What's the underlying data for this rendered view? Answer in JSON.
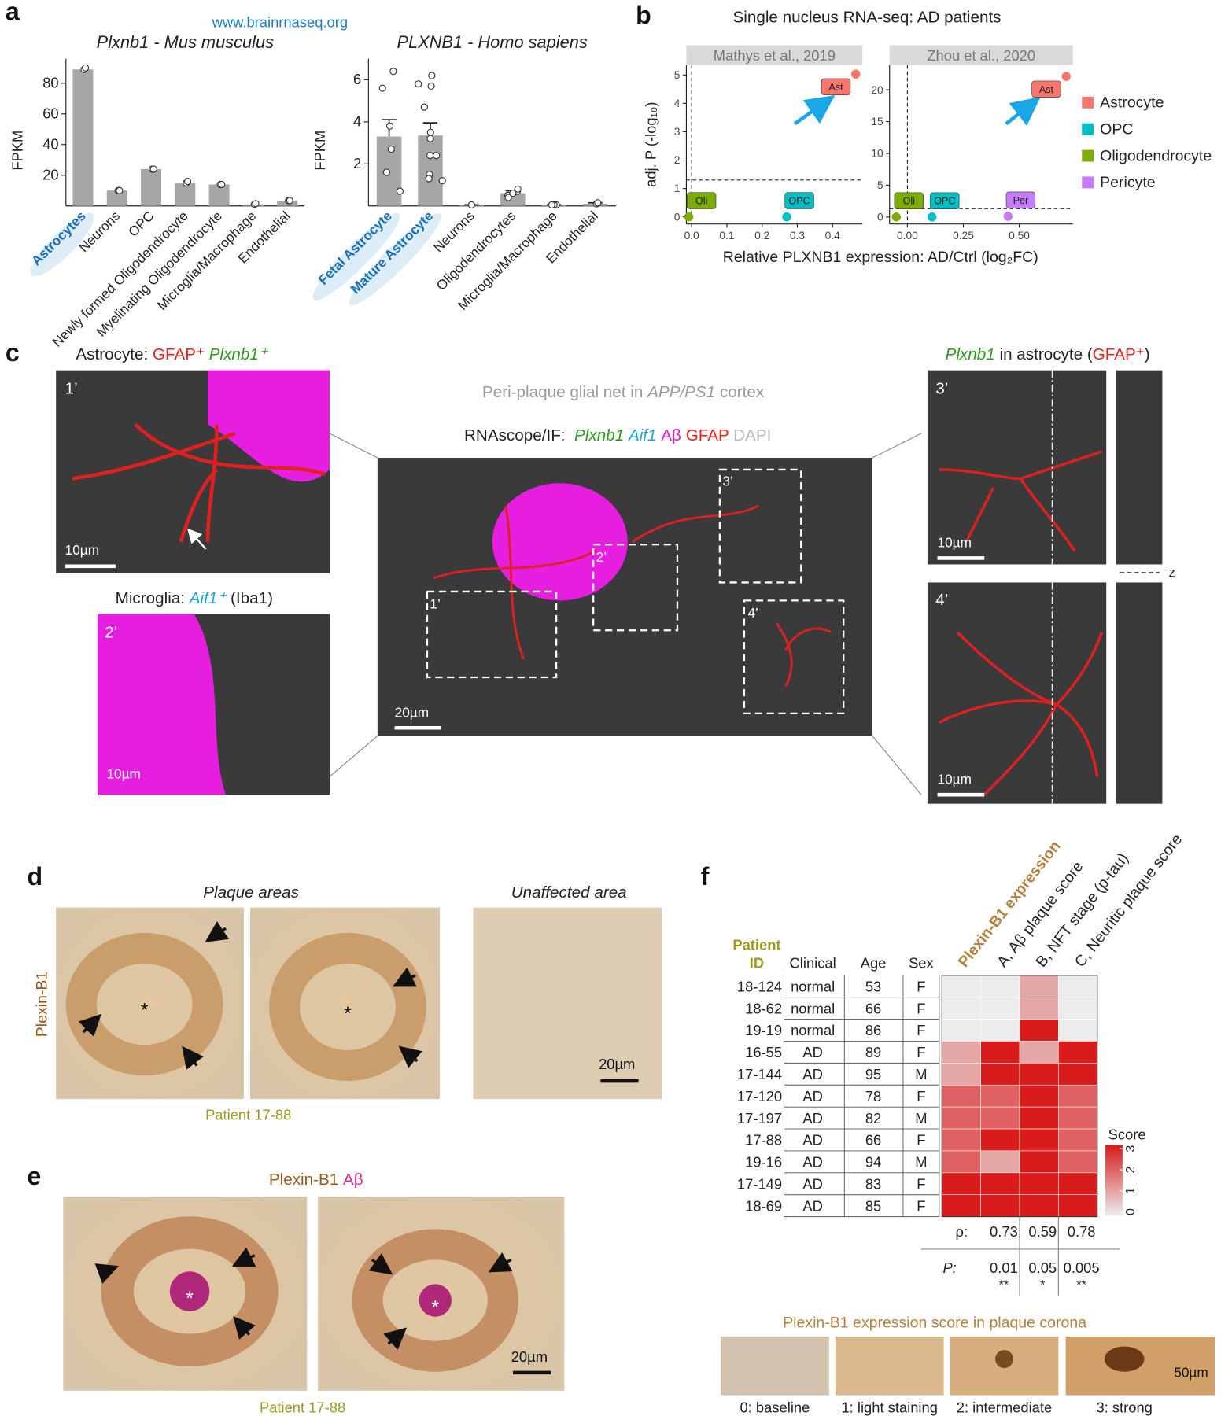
{
  "panel_labels": [
    "a",
    "b",
    "c",
    "d",
    "e",
    "f"
  ],
  "source": "www.brainrnaseq.org",
  "chart_data": [
    {
      "type": "bar",
      "title": "Plxnb1 - Mus musculus",
      "ylabel": "FPKM",
      "categories": [
        "Astrocytes",
        "Neurons",
        "OPC",
        "Newly formed Oligodendrocyte",
        "Myelinating Oligodendrocyte",
        "Microglia/Macrophage",
        "Endothelial"
      ],
      "values": [
        89,
        10,
        24,
        15,
        14,
        1,
        3.5
      ],
      "points": [
        [
          89,
          90
        ],
        [
          10,
          10
        ],
        [
          24,
          24
        ],
        [
          15,
          16
        ],
        [
          14,
          14
        ],
        [
          1,
          1.5
        ],
        [
          3.5,
          3.5
        ]
      ],
      "color": "#a6a6a6",
      "label_colors": [
        "#1a6fb5",
        "#222",
        "#222",
        "#222",
        "#222",
        "#222",
        "#222"
      ],
      "label_backgrounds": [
        "#dcedf8",
        null,
        null,
        null,
        null,
        null,
        null
      ],
      "ylim": [
        0,
        96
      ],
      "yticks": [
        20,
        40,
        60,
        80
      ]
    },
    {
      "type": "bar",
      "title": "PLXNB1 - Homo sapiens",
      "ylabel": "FPKM",
      "categories": [
        "Fetal Astrocyte",
        "Mature Astrocyte",
        "Neurons",
        "Oligodendrocytes",
        "Microglia/Macrophage",
        "Endothelial"
      ],
      "values": [
        3.3,
        3.35,
        0.05,
        0.6,
        0.05,
        0.1
      ],
      "errors": [
        0.8,
        0.6,
        0,
        0.12,
        0,
        0.05
      ],
      "points": [
        [
          6.4,
          5.6,
          3.8,
          2.7,
          1.6,
          0.7
        ],
        [
          6.2,
          5.8,
          5.7,
          4.7,
          3.5,
          3.2,
          2.4,
          2.4,
          1.5,
          1.2,
          1.3
        ],
        [
          0.05
        ],
        [
          0.7,
          0.5,
          0.6,
          0.8,
          0.4
        ],
        [
          0.05,
          0.05,
          0.05
        ],
        [
          0.1,
          0.15
        ]
      ],
      "color": "#a6a6a6",
      "label_colors": [
        "#1a6fb5",
        "#1a6fb5",
        "#222",
        "#222",
        "#222",
        "#222"
      ],
      "label_backgrounds": [
        "#dcedf8",
        "#dcedf8",
        null,
        null,
        null,
        null
      ],
      "ylim": [
        0,
        7
      ],
      "yticks": [
        2,
        4,
        6
      ]
    },
    {
      "type": "scatter",
      "title": "Single nucleus RNA-seq: AD patients",
      "xlabel": "Relative PLXNB1 expression: AD/Ctrl (log₂FC)",
      "ylabel": "adj. P (-log₁₀)",
      "series": [
        {
          "name": "Astrocyte",
          "color": "#f8766d"
        },
        {
          "name": "OPC",
          "color": "#00bfc4"
        },
        {
          "name": "Oligodendrocyte",
          "color": "#7cae00"
        },
        {
          "name": "Pericyte",
          "color": "#c77cff"
        }
      ],
      "facets": [
        {
          "title": "Mathys et al., 2019",
          "xlim": [
            -0.015,
            0.485
          ],
          "ylim": [
            -0.25,
            5.35
          ],
          "xticks": [
            {
              "value": 0,
              "label": "0.0"
            },
            {
              "value": 0.1,
              "label": "0.1"
            },
            {
              "value": 0.2,
              "label": "0.2"
            },
            {
              "value": 0.3,
              "label": "0.3"
            },
            {
              "value": 0.4,
              "label": "0.4"
            }
          ],
          "yticks": [
            0,
            1,
            2,
            3,
            4,
            5
          ],
          "hline": 1.3,
          "vline": 0,
          "labels": [
            "Oli",
            "OPC",
            "Ast"
          ],
          "x": [
            -0.008,
            0.27,
            0.466
          ],
          "y": [
            0,
            0,
            5.03
          ],
          "colors": [
            "#7cae00",
            "#00bfc4",
            "#f8766d"
          ]
        },
        {
          "title": "Zhou et al., 2020",
          "xlim": [
            -0.08,
            0.74
          ],
          "ylim": [
            -1.1,
            23.9
          ],
          "xticks": [
            {
              "value": 0,
              "label": "0.00"
            },
            {
              "value": 0.25,
              "label": "0.25"
            },
            {
              "value": 0.5,
              "label": "0.50"
            }
          ],
          "yticks": [
            0,
            5,
            10,
            15,
            20
          ],
          "hline": 1.3,
          "vline": 0,
          "labels": [
            "Oli",
            "OPC",
            "Per",
            "Ast"
          ],
          "x": [
            -0.05,
            0.11,
            0.45,
            0.71
          ],
          "y": [
            0,
            0,
            0.1,
            22.1
          ],
          "colors": [
            "#7cae00",
            "#00bfc4",
            "#c77cff",
            "#f8766d"
          ]
        }
      ]
    },
    {
      "type": "heatmap",
      "columns": [
        "Plexin-B1 expression",
        "A, Aβ plaque score",
        "B, NFT stage (p-tau)",
        "C, Neuritic plaque score"
      ],
      "rows": [
        "18-124",
        "18-62",
        "19-19",
        "16-55",
        "17-144",
        "17-120",
        "17-197",
        "17-88",
        "19-16",
        "17-149",
        "18-69"
      ],
      "values": [
        [
          0,
          0,
          1,
          0
        ],
        [
          0,
          0,
          1,
          0
        ],
        [
          0,
          0,
          3,
          0
        ],
        [
          1,
          3,
          1,
          3
        ],
        [
          1,
          3,
          3,
          3
        ],
        [
          2,
          2,
          3,
          2
        ],
        [
          2,
          2,
          3,
          2
        ],
        [
          2,
          3,
          3,
          2
        ],
        [
          2,
          1,
          3,
          2
        ],
        [
          3,
          3,
          3,
          3
        ],
        [
          3,
          3,
          3,
          3
        ]
      ],
      "colorbar_title": "Score",
      "clim": [
        0,
        3
      ],
      "cticks": [
        0,
        1,
        2,
        3
      ],
      "colors": [
        "#ececec",
        "#d81b1b"
      ],
      "rho_label": "ρ:",
      "rho": [
        0.73,
        0.59,
        0.78
      ],
      "p_label": "P:",
      "p": [
        0.01,
        0.05,
        0.005
      ],
      "stars": [
        "**",
        "*",
        "**"
      ]
    }
  ],
  "table": {
    "id_header": [
      "Patient",
      "ID"
    ],
    "headers": [
      "Clinical",
      "Age",
      "Sex"
    ],
    "rows": [
      [
        "normal",
        53,
        "F"
      ],
      [
        "normal",
        66,
        "F"
      ],
      [
        "normal",
        86,
        "F"
      ],
      [
        "AD",
        89,
        "F"
      ],
      [
        "AD",
        95,
        "M"
      ],
      [
        "AD",
        78,
        "F"
      ],
      [
        "AD",
        82,
        "M"
      ],
      [
        "AD",
        66,
        "F"
      ],
      [
        "AD",
        94,
        "M"
      ],
      [
        "AD",
        83,
        "F"
      ],
      [
        "AD",
        85,
        "F"
      ]
    ]
  },
  "panel_c": {
    "inset1_title": [
      "Astrocyte: ",
      "GFAP⁺ ",
      "Plxnb1⁺"
    ],
    "inset2_title": [
      "Microglia: ",
      "Aif1⁺",
      " (Iba1)"
    ],
    "main_title": [
      "Peri-plaque glial net in ",
      "APP/PS1",
      " cortex"
    ],
    "stains": [
      "RNAscope/IF:  ",
      "Plxnb1 ",
      "Aif1 ",
      "Aβ ",
      "GFAP ",
      "DAPI"
    ],
    "right_title": [
      "Plxnb1",
      " in astrocyte (",
      "GFAP⁺",
      ")"
    ],
    "inset_labels": [
      "1’",
      "2’",
      "3’",
      "4’"
    ],
    "scale_bars": [
      "10µm",
      "10µm",
      "20µm",
      "10µm",
      "10µm"
    ],
    "z_label": "z"
  },
  "panel_d": {
    "ylabel": "Plexin-B1",
    "titles": [
      "Plaque areas",
      "Unaffected area"
    ],
    "patient": "Patient 17-88",
    "scale_bar": "20µm",
    "asterisk": "*"
  },
  "panel_e": {
    "title": [
      "Plexin-B1 ",
      "Aβ"
    ],
    "patient": "Patient 17-88",
    "scale_bar": "20µm",
    "asterisk": "*"
  },
  "panel_f_bottom": {
    "title": "Plexin-B1 expression score in plaque corona",
    "labels": [
      "0: baseline",
      "1: light staining",
      "2: intermediate",
      "3: strong"
    ],
    "scale_bar": "50µm"
  }
}
